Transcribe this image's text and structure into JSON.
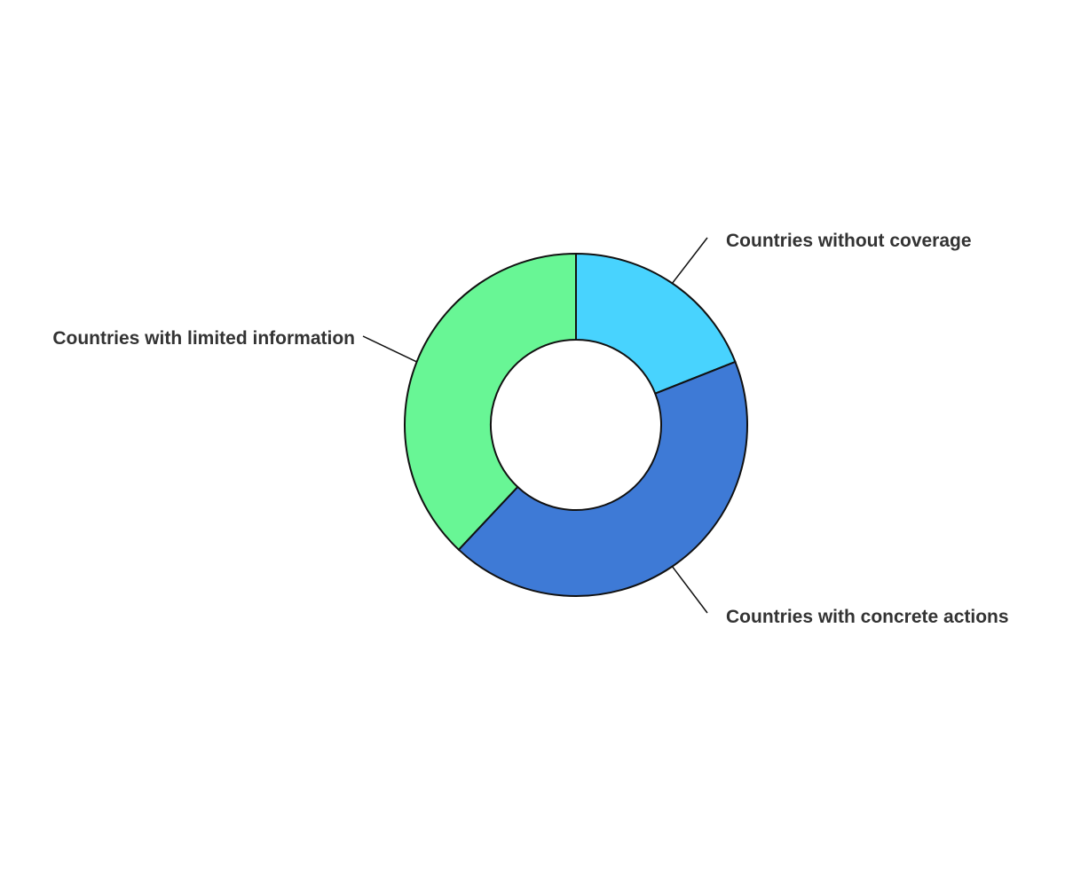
{
  "chart_data": {
    "type": "pie",
    "donut": true,
    "title": "",
    "slices": [
      {
        "label": "Countries without coverage",
        "value": 19,
        "color": "#48d3fe"
      },
      {
        "label": "Countries with concrete actions",
        "value": 43,
        "color": "#3e7ad6"
      },
      {
        "label": "Countries with limited information",
        "value": 38,
        "color": "#68f695"
      }
    ],
    "legend": "none",
    "label_style": "outside-with-leader-lines"
  }
}
